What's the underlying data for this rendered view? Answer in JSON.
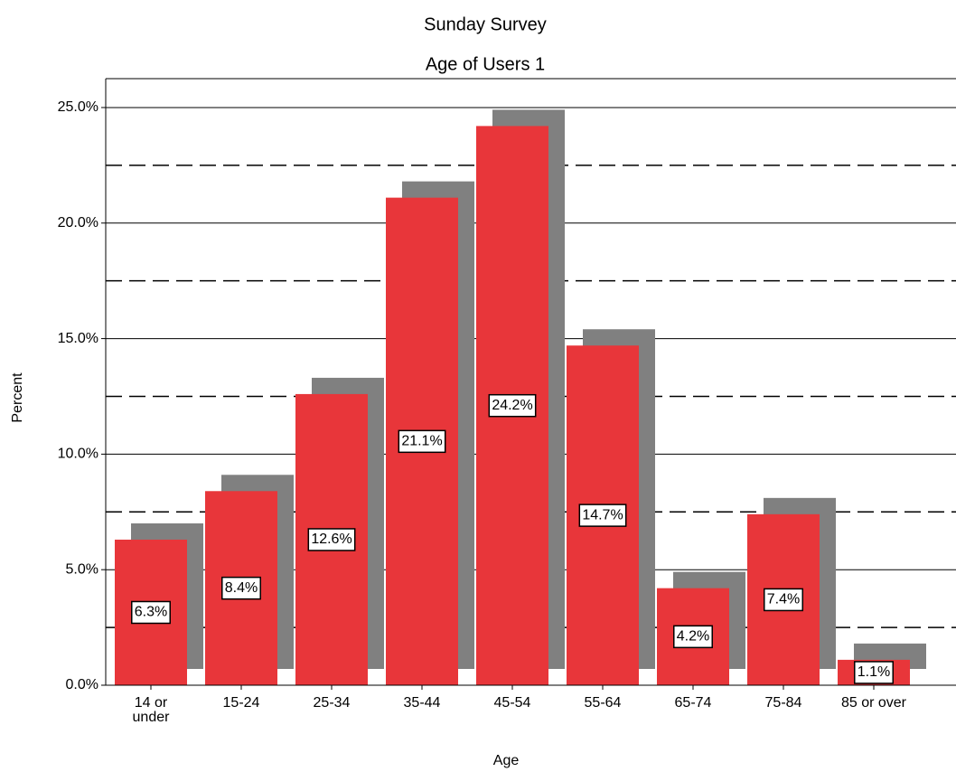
{
  "chart_data": {
    "type": "bar",
    "title": "Sunday Survey",
    "subtitle": "Age of Users 1",
    "x_label": "Age",
    "y_label": "Percent",
    "categories": [
      "14 or\nunder",
      "15-24",
      "25-34",
      "35-44",
      "45-54",
      "55-64",
      "65-74",
      "75-84",
      "85 or over"
    ],
    "values": [
      6.3,
      8.4,
      12.6,
      21.1,
      24.2,
      14.7,
      4.2,
      7.4,
      1.1
    ],
    "value_labels": [
      "6.3%",
      "8.4%",
      "12.6%",
      "21.1%",
      "24.2%",
      "14.7%",
      "4.2%",
      "7.4%",
      "1.1%"
    ],
    "color": "#e8363a",
    "shadow_color": "#808080",
    "ylim": [
      0,
      26.25
    ],
    "yticks": [
      {
        "value": 0,
        "label": "0.0%"
      },
      {
        "value": 5,
        "label": "5.0%"
      },
      {
        "value": 10,
        "label": "10.0%"
      },
      {
        "value": 15,
        "label": "15.0%"
      },
      {
        "value": 20,
        "label": "20.0%"
      },
      {
        "value": 25,
        "label": "25.0%"
      }
    ],
    "minor_yticks": [
      2.5,
      7.5,
      12.5,
      17.5,
      22.5
    ],
    "grid": true
  }
}
